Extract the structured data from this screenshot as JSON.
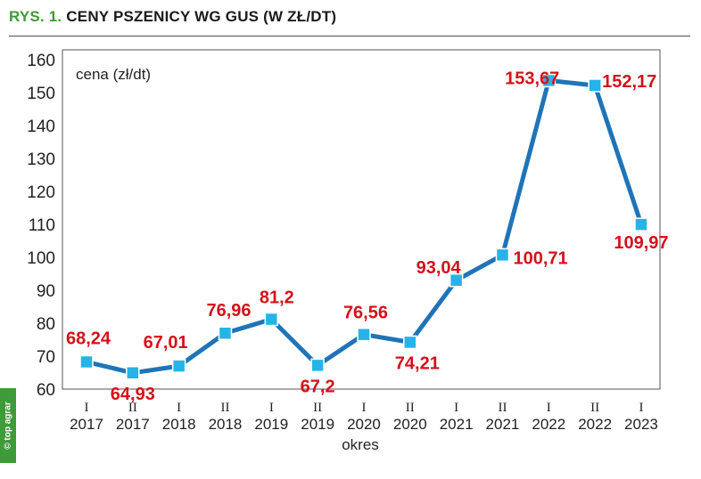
{
  "header": {
    "prefix": "RYS. 1.",
    "title": "CENY PSZENICY WG GUS (W ZŁ/DT)"
  },
  "watermark": "© top agrar",
  "colors": {
    "line": "#1f74b8",
    "marker": "#26b4e8",
    "labels": "#d4101a",
    "brand": "#3f9a3a"
  },
  "chart_data": {
    "type": "line",
    "title": "CENY PSZENICY WG GUS (W ZŁ/DT)",
    "ylabel": "cena (zł/dt)",
    "xlabel": "okres",
    "ylim": [
      60,
      160
    ],
    "yticks": [
      60,
      70,
      80,
      90,
      100,
      110,
      120,
      130,
      140,
      150,
      160
    ],
    "categories": [
      {
        "half": "I",
        "year": "2017"
      },
      {
        "half": "II",
        "year": "2017"
      },
      {
        "half": "I",
        "year": "2018"
      },
      {
        "half": "II",
        "year": "2018"
      },
      {
        "half": "I",
        "year": "2019"
      },
      {
        "half": "II",
        "year": "2019"
      },
      {
        "half": "I",
        "year": "2020"
      },
      {
        "half": "II",
        "year": "2020"
      },
      {
        "half": "I",
        "year": "2021"
      },
      {
        "half": "II",
        "year": "2021"
      },
      {
        "half": "I",
        "year": "2022"
      },
      {
        "half": "II",
        "year": "2022"
      },
      {
        "half": "I",
        "year": "2023"
      }
    ],
    "values": [
      68.24,
      64.93,
      67.01,
      76.96,
      81.2,
      67.2,
      76.56,
      74.21,
      93.04,
      100.71,
      153.67,
      152.17,
      109.97
    ],
    "data_labels": [
      "68,24",
      "64,93",
      "67,01",
      "76,96",
      "81,2",
      "67,2",
      "76,56",
      "74,21",
      "93,04",
      "100,71",
      "153,67",
      "152,17",
      "109,97"
    ],
    "grid": false,
    "legend": "none"
  }
}
